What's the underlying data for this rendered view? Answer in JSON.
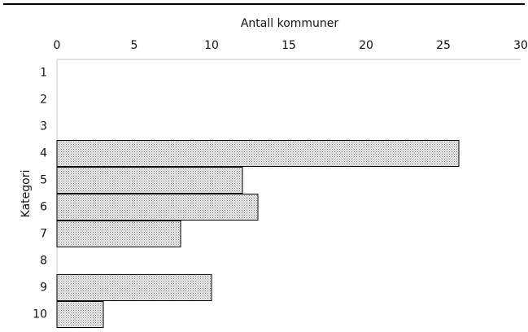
{
  "chart_data": {
    "type": "bar",
    "orientation": "horizontal",
    "title": "",
    "xlabel": "Antall kommuner",
    "ylabel": "Kategori",
    "xlim": [
      0,
      30
    ],
    "x_ticks": [
      "0",
      "5",
      "10",
      "15",
      "20",
      "25",
      "30"
    ],
    "x_tick_values": [
      0,
      5,
      10,
      15,
      20,
      25,
      30
    ],
    "x_axis_position": "top",
    "categories": [
      "1",
      "2",
      "3",
      "4",
      "5",
      "6",
      "7",
      "8",
      "9",
      "10"
    ],
    "values": [
      0,
      0,
      0,
      26,
      12,
      13,
      8,
      0,
      10,
      3
    ],
    "grid": false,
    "legend": "none",
    "bar_fill": "#e2e2e2",
    "bar_stroke": "#000000"
  }
}
